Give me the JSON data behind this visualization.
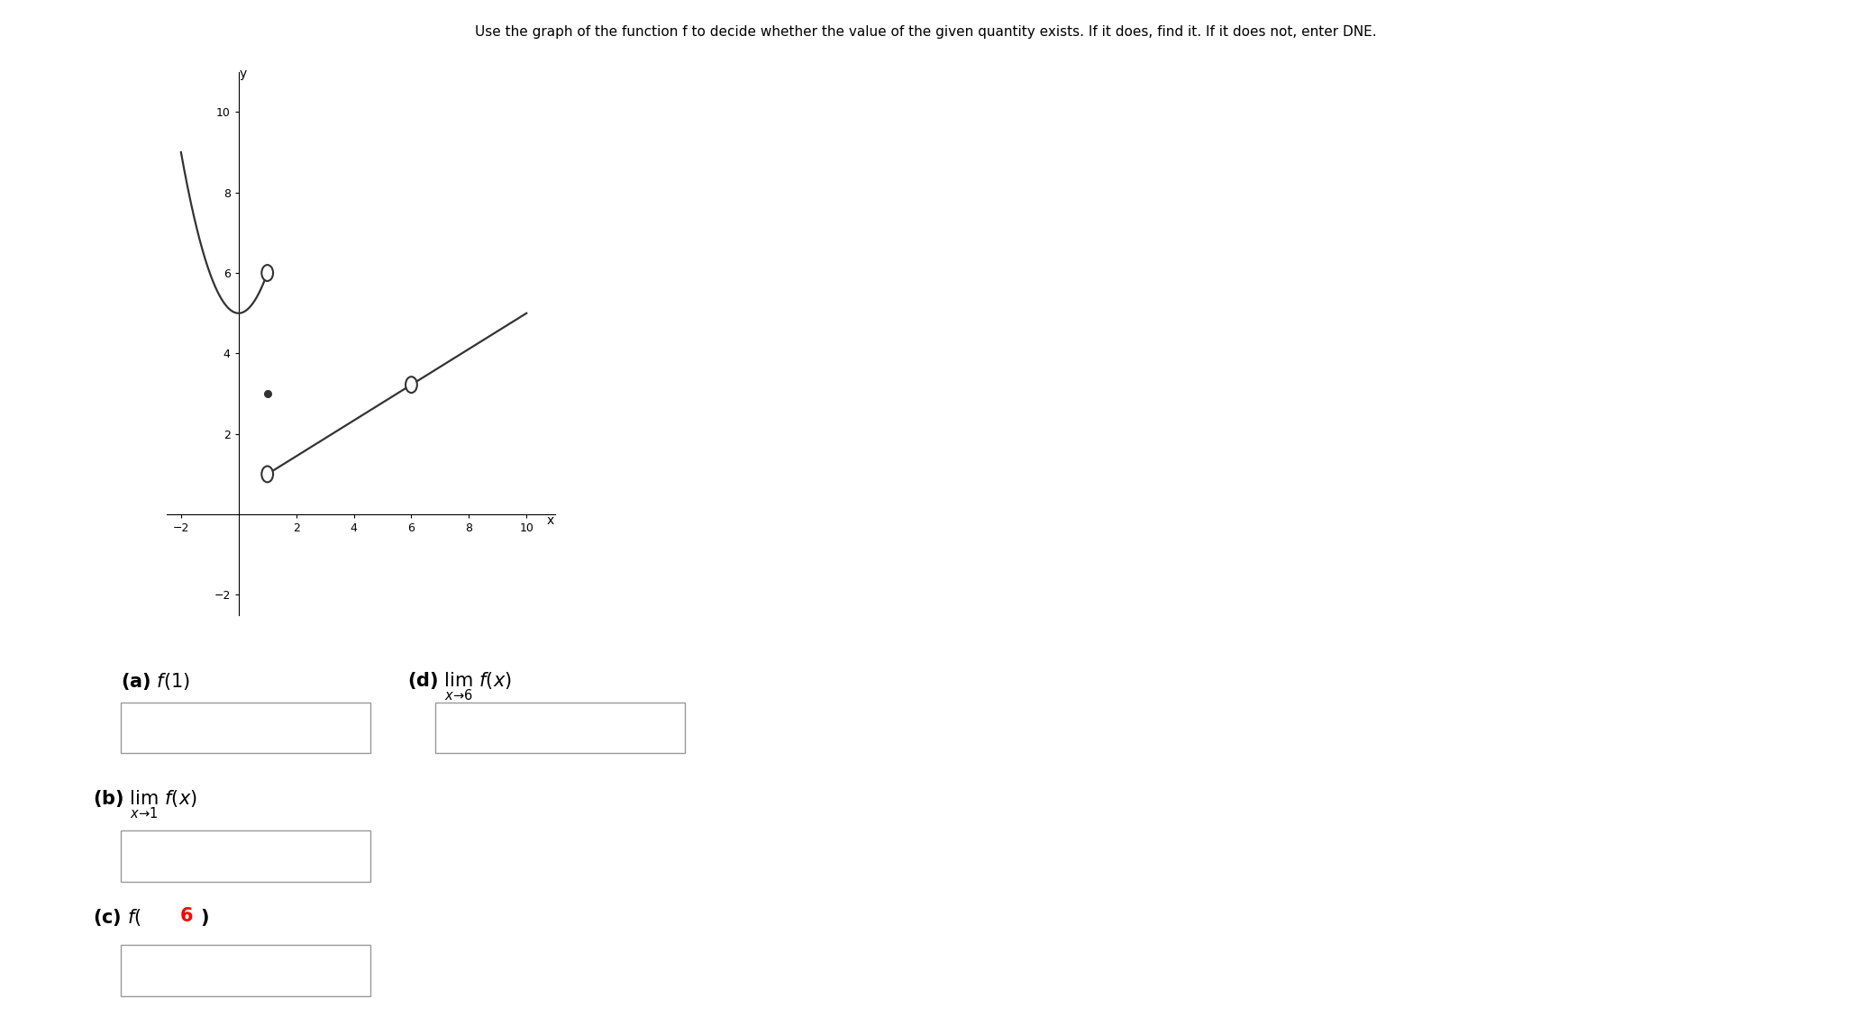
{
  "title": "Use the graph of the function f to decide whether the value of the given quantity exists. If it does, find it. If it does not, enter DNE.",
  "curve_color": "#333333",
  "background_color": "#ffffff",
  "parabola_vertex_y": 5,
  "open_circle_curve_x": 1,
  "open_circle_curve_y": 6,
  "filled_dot_x": 1,
  "filled_dot_y": 3,
  "line_start_x": 1,
  "line_start_y": 1,
  "line_end_x": 10,
  "line_end_y": 5,
  "open_circle_line_x": 6,
  "graph_xlim": [
    -2.5,
    11.0
  ],
  "graph_ylim": [
    -2.5,
    11.0
  ],
  "xticks": [
    -2,
    2,
    4,
    6,
    8,
    10
  ],
  "yticks": [
    -2,
    2,
    4,
    6,
    8,
    10
  ]
}
